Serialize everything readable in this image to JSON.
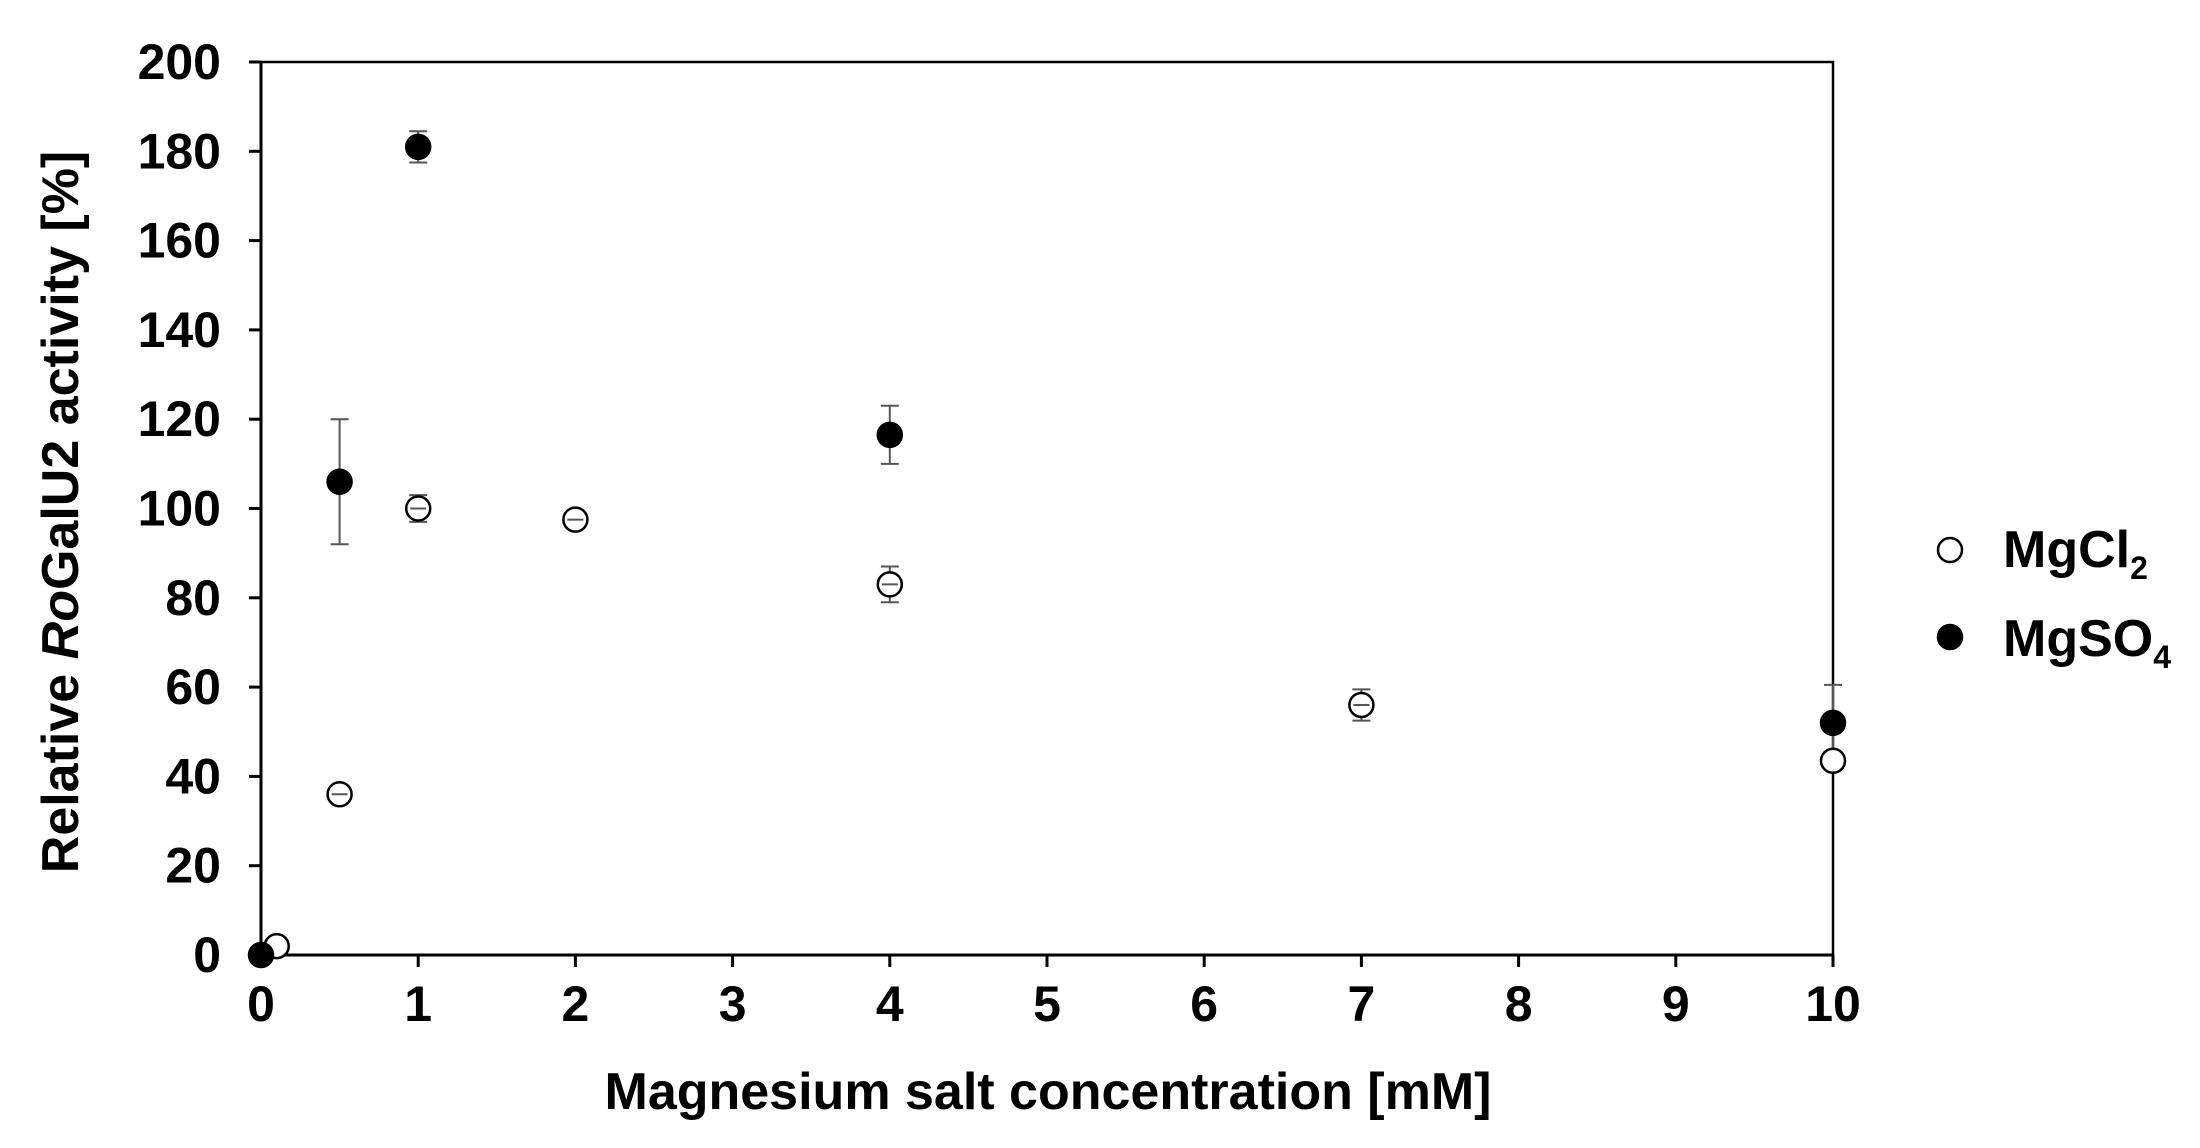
{
  "chart_data": {
    "type": "scatter",
    "title": "",
    "xlabel": "Magnesium salt concentration [mM]",
    "ylabel_parts": [
      "Relative ",
      "Ro",
      "GalU2 activity [%]"
    ],
    "xlim": [
      0,
      10
    ],
    "ylim": [
      0,
      200
    ],
    "x_ticks": [
      0,
      1,
      2,
      3,
      4,
      5,
      6,
      7,
      8,
      9,
      10
    ],
    "y_ticks": [
      0,
      20,
      40,
      60,
      80,
      100,
      120,
      140,
      160,
      180,
      200
    ],
    "grid": false,
    "legend_position": "right",
    "series": [
      {
        "name_main": "MgCl",
        "name_sub": "2",
        "marker": "open-circle",
        "color": "#000000",
        "points": [
          {
            "x": 0.1,
            "y": 2,
            "err": 0
          },
          {
            "x": 0.5,
            "y": 36,
            "err": 1.5
          },
          {
            "x": 1,
            "y": 100,
            "err": 3
          },
          {
            "x": 2,
            "y": 97.5,
            "err": 2
          },
          {
            "x": 4,
            "y": 83,
            "err": 4
          },
          {
            "x": 7,
            "y": 56,
            "err": 3.5
          },
          {
            "x": 10,
            "y": 43.5,
            "err": 0
          }
        ]
      },
      {
        "name_main": "MgSO",
        "name_sub": "4",
        "marker": "filled-circle",
        "color": "#000000",
        "points": [
          {
            "x": 0,
            "y": 0,
            "err": 0
          },
          {
            "x": 0.5,
            "y": 106,
            "err": 14
          },
          {
            "x": 1,
            "y": 181,
            "err": 3.5
          },
          {
            "x": 4,
            "y": 116.5,
            "err": 6.5
          },
          {
            "x": 10,
            "y": 52,
            "err": 8.5
          }
        ]
      }
    ]
  }
}
